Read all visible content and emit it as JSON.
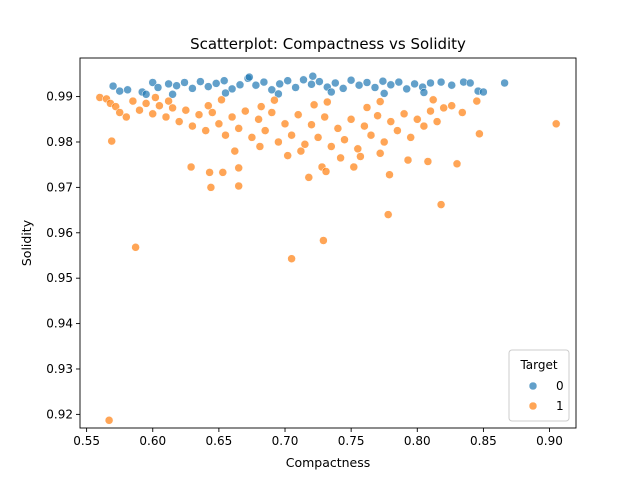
{
  "chart_data": {
    "type": "scatter",
    "title": "Scatterplot: Compactness vs Solidity",
    "xlabel": "Compactness",
    "ylabel": "Solidity",
    "xlim": [
      0.545,
      0.92
    ],
    "ylim": [
      0.917,
      0.9985
    ],
    "x_ticks": [
      0.55,
      0.6,
      0.65,
      0.7,
      0.75,
      0.8,
      0.85,
      0.9
    ],
    "x_tick_labels": [
      "0.55",
      "0.60",
      "0.65",
      "0.70",
      "0.75",
      "0.80",
      "0.85",
      "0.90"
    ],
    "y_ticks": [
      0.92,
      0.93,
      0.94,
      0.95,
      0.96,
      0.97,
      0.98,
      0.99
    ],
    "y_tick_labels": [
      "0.92",
      "0.93",
      "0.94",
      "0.95",
      "0.96",
      "0.97",
      "0.98",
      "0.99"
    ],
    "grid": false,
    "legend": {
      "title": "Target",
      "placement": "lower-right",
      "entries": [
        "0",
        "1"
      ]
    },
    "series": [
      {
        "name": "0",
        "color": "#1f77b4",
        "points": [
          [
            0.57,
            0.9923
          ],
          [
            0.575,
            0.9912
          ],
          [
            0.581,
            0.9915
          ],
          [
            0.592,
            0.991
          ],
          [
            0.595,
            0.9905
          ],
          [
            0.6,
            0.9931
          ],
          [
            0.604,
            0.992
          ],
          [
            0.612,
            0.9928
          ],
          [
            0.618,
            0.9924
          ],
          [
            0.624,
            0.9931
          ],
          [
            0.63,
            0.9918
          ],
          [
            0.636,
            0.9933
          ],
          [
            0.642,
            0.9922
          ],
          [
            0.648,
            0.9929
          ],
          [
            0.654,
            0.9935
          ],
          [
            0.66,
            0.9917
          ],
          [
            0.666,
            0.9926
          ],
          [
            0.672,
            0.994
          ],
          [
            0.678,
            0.9925
          ],
          [
            0.684,
            0.9932
          ],
          [
            0.69,
            0.9915
          ],
          [
            0.696,
            0.9928
          ],
          [
            0.702,
            0.9935
          ],
          [
            0.708,
            0.992
          ],
          [
            0.714,
            0.9937
          ],
          [
            0.72,
            0.9927
          ],
          [
            0.726,
            0.9933
          ],
          [
            0.732,
            0.9921
          ],
          [
            0.738,
            0.993
          ],
          [
            0.744,
            0.9918
          ],
          [
            0.75,
            0.9936
          ],
          [
            0.756,
            0.9925
          ],
          [
            0.762,
            0.9931
          ],
          [
            0.768,
            0.992
          ],
          [
            0.774,
            0.9934
          ],
          [
            0.78,
            0.9926
          ],
          [
            0.786,
            0.9932
          ],
          [
            0.792,
            0.9917
          ],
          [
            0.798,
            0.9928
          ],
          [
            0.804,
            0.9921
          ],
          [
            0.81,
            0.993
          ],
          [
            0.818,
            0.9932
          ],
          [
            0.826,
            0.9925
          ],
          [
            0.835,
            0.9932
          ],
          [
            0.84,
            0.993
          ],
          [
            0.846,
            0.9912
          ],
          [
            0.85,
            0.991
          ],
          [
            0.866,
            0.993
          ],
          [
            0.615,
            0.9905
          ],
          [
            0.655,
            0.9908
          ],
          [
            0.695,
            0.9906
          ],
          [
            0.735,
            0.991
          ],
          [
            0.775,
            0.9907
          ],
          [
            0.805,
            0.9909
          ],
          [
            0.721,
            0.9945
          ],
          [
            0.673,
            0.9943
          ]
        ]
      },
      {
        "name": "1",
        "color": "#ff7f0e",
        "points": [
          [
            0.56,
            0.9898
          ],
          [
            0.565,
            0.9895
          ],
          [
            0.568,
            0.9885
          ],
          [
            0.572,
            0.9878
          ],
          [
            0.575,
            0.9865
          ],
          [
            0.58,
            0.9855
          ],
          [
            0.585,
            0.989
          ],
          [
            0.59,
            0.987
          ],
          [
            0.595,
            0.9885
          ],
          [
            0.6,
            0.9862
          ],
          [
            0.605,
            0.988
          ],
          [
            0.61,
            0.9855
          ],
          [
            0.615,
            0.9875
          ],
          [
            0.62,
            0.9845
          ],
          [
            0.625,
            0.987
          ],
          [
            0.63,
            0.9835
          ],
          [
            0.635,
            0.986
          ],
          [
            0.64,
            0.9825
          ],
          [
            0.645,
            0.9865
          ],
          [
            0.65,
            0.984
          ],
          [
            0.655,
            0.9815
          ],
          [
            0.66,
            0.9855
          ],
          [
            0.665,
            0.983
          ],
          [
            0.67,
            0.9868
          ],
          [
            0.675,
            0.981
          ],
          [
            0.68,
            0.985
          ],
          [
            0.685,
            0.9825
          ],
          [
            0.69,
            0.9865
          ],
          [
            0.695,
            0.98
          ],
          [
            0.7,
            0.984
          ],
          [
            0.705,
            0.9815
          ],
          [
            0.71,
            0.986
          ],
          [
            0.715,
            0.9795
          ],
          [
            0.72,
            0.9838
          ],
          [
            0.725,
            0.981
          ],
          [
            0.73,
            0.9855
          ],
          [
            0.735,
            0.979
          ],
          [
            0.74,
            0.983
          ],
          [
            0.745,
            0.9805
          ],
          [
            0.75,
            0.985
          ],
          [
            0.755,
            0.9785
          ],
          [
            0.76,
            0.9835
          ],
          [
            0.765,
            0.9815
          ],
          [
            0.77,
            0.9858
          ],
          [
            0.775,
            0.98
          ],
          [
            0.78,
            0.9845
          ],
          [
            0.785,
            0.9825
          ],
          [
            0.79,
            0.9862
          ],
          [
            0.795,
            0.981
          ],
          [
            0.8,
            0.985
          ],
          [
            0.805,
            0.9835
          ],
          [
            0.81,
            0.9868
          ],
          [
            0.815,
            0.9845
          ],
          [
            0.82,
            0.9875
          ],
          [
            0.826,
            0.988
          ],
          [
            0.834,
            0.9865
          ],
          [
            0.845,
            0.989
          ],
          [
            0.847,
            0.9818
          ],
          [
            0.905,
            0.984
          ],
          [
            0.569,
            0.9802
          ],
          [
            0.587,
            0.9568
          ],
          [
            0.567,
            0.9187
          ],
          [
            0.629,
            0.9745
          ],
          [
            0.643,
            0.9733
          ],
          [
            0.644,
            0.97
          ],
          [
            0.653,
            0.9733
          ],
          [
            0.665,
            0.9743
          ],
          [
            0.665,
            0.9703
          ],
          [
            0.705,
            0.9543
          ],
          [
            0.718,
            0.9722
          ],
          [
            0.728,
            0.9745
          ],
          [
            0.729,
            0.9583
          ],
          [
            0.731,
            0.9735
          ],
          [
            0.752,
            0.9745
          ],
          [
            0.778,
            0.964
          ],
          [
            0.779,
            0.9728
          ],
          [
            0.793,
            0.976
          ],
          [
            0.808,
            0.9757
          ],
          [
            0.818,
            0.9662
          ],
          [
            0.83,
            0.9752
          ],
          [
            0.612,
            0.989
          ],
          [
            0.652,
            0.9893
          ],
          [
            0.692,
            0.9892
          ],
          [
            0.732,
            0.9888
          ],
          [
            0.772,
            0.9889
          ],
          [
            0.812,
            0.9893
          ],
          [
            0.642,
            0.988
          ],
          [
            0.682,
            0.9878
          ],
          [
            0.722,
            0.9882
          ],
          [
            0.762,
            0.9876
          ],
          [
            0.602,
            0.9898
          ],
          [
            0.662,
            0.978
          ],
          [
            0.702,
            0.977
          ],
          [
            0.742,
            0.9765
          ],
          [
            0.772,
            0.9775
          ],
          [
            0.681,
            0.979
          ],
          [
            0.712,
            0.978
          ],
          [
            0.757,
            0.9768
          ]
        ]
      }
    ]
  }
}
